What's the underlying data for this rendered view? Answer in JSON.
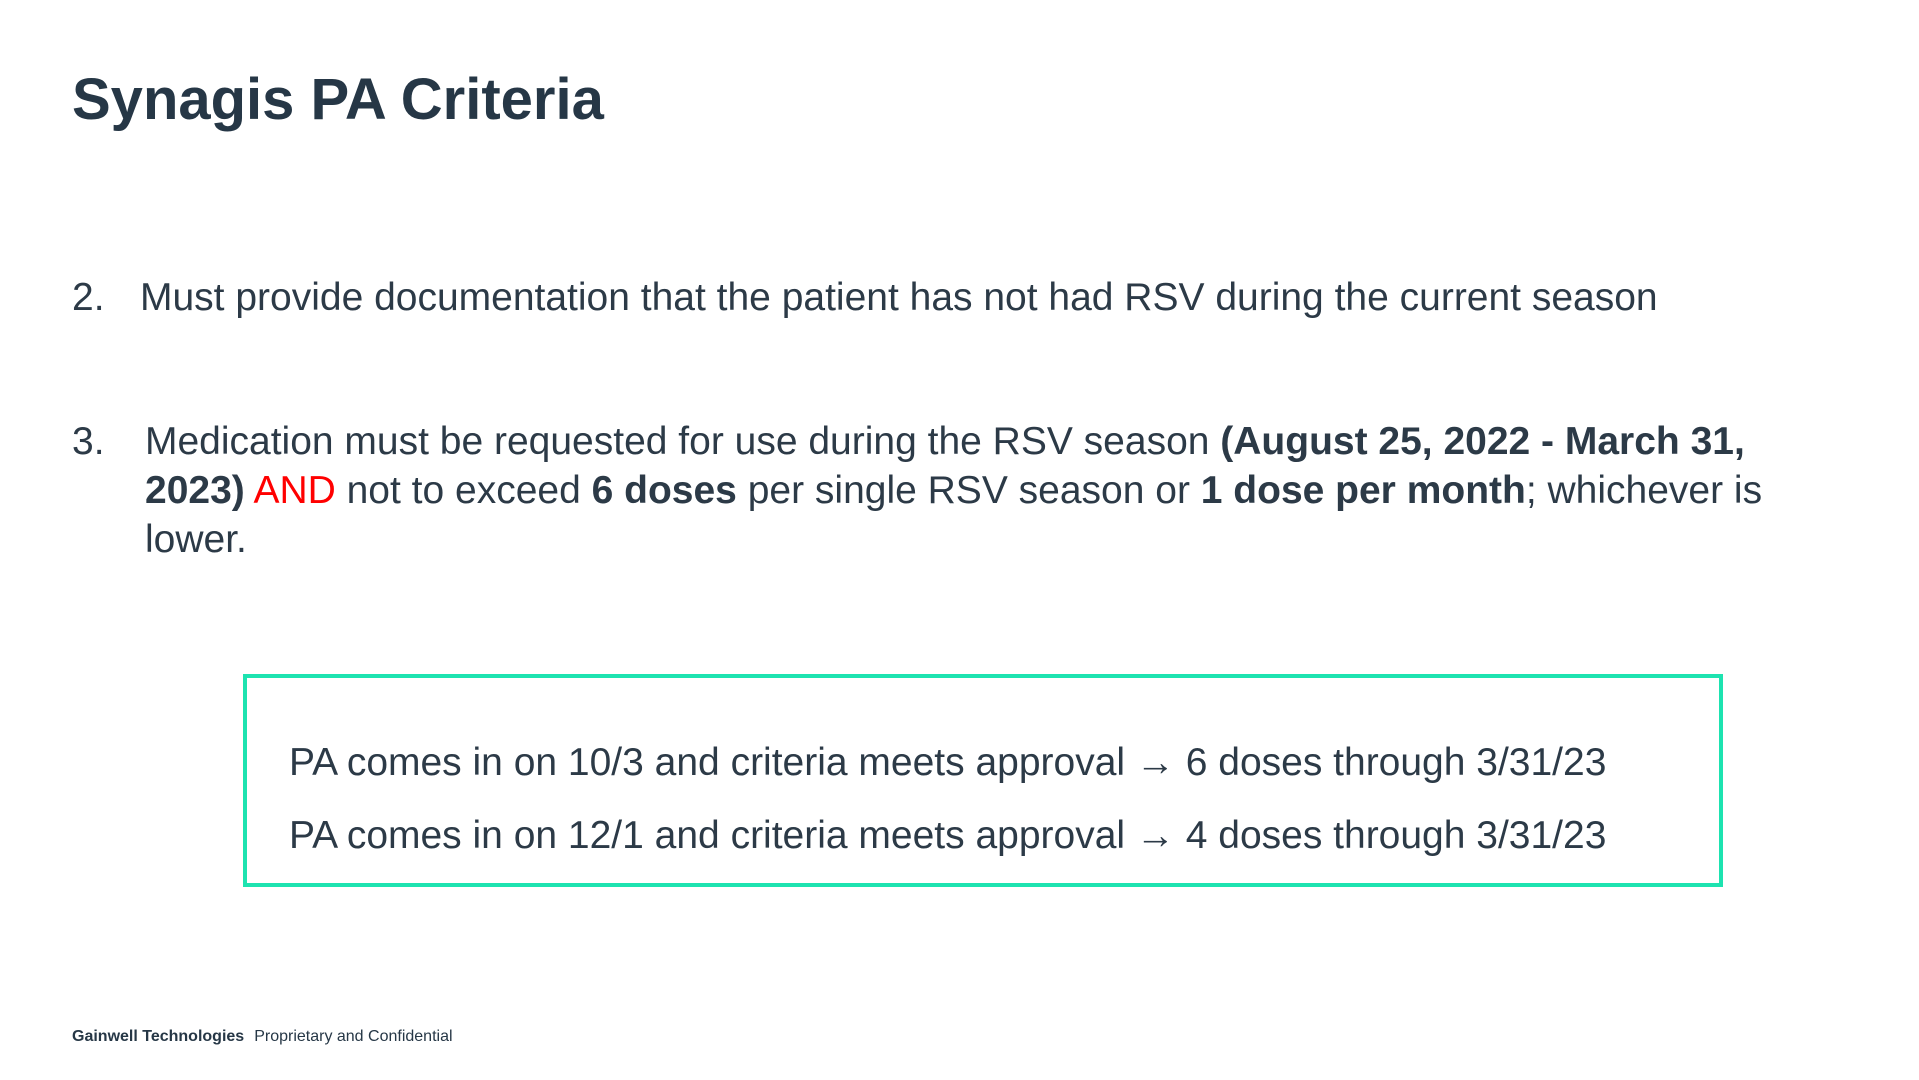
{
  "slide": {
    "title": "Synagis PA Criteria"
  },
  "criteria": {
    "item2": {
      "number": "2.",
      "text": "Must provide documentation that the patient has not had RSV during the current season"
    },
    "item3": {
      "number": "3.",
      "line1_plain": "Medication must be requested for use during the RSV season ",
      "line1_bold": "(August 25, 2022 - March 31,",
      "line2_bold_a": "2023)",
      "line2_red": "AND",
      "line2_plain_a": " not to exceed ",
      "line2_bold_b": "6 doses",
      "line2_plain_b": " per single RSV season or ",
      "line2_bold_c": "1 dose per month",
      "line2_plain_c": "; whichever is",
      "line3": "lower."
    }
  },
  "examples": [
    {
      "text": "PA comes in on 10/3 and criteria meets approval → 6 doses through 3/31/23"
    },
    {
      "text": "PA comes in on 12/1 and criteria meets approval → 4 doses through 3/31/23"
    }
  ],
  "footer": {
    "company": "Gainwell Technologies",
    "note": "Proprietary and Confidential"
  },
  "colors": {
    "text": "#2c3a47",
    "emphasis_red": "#ff0000",
    "box_border": "#1de3b0"
  }
}
